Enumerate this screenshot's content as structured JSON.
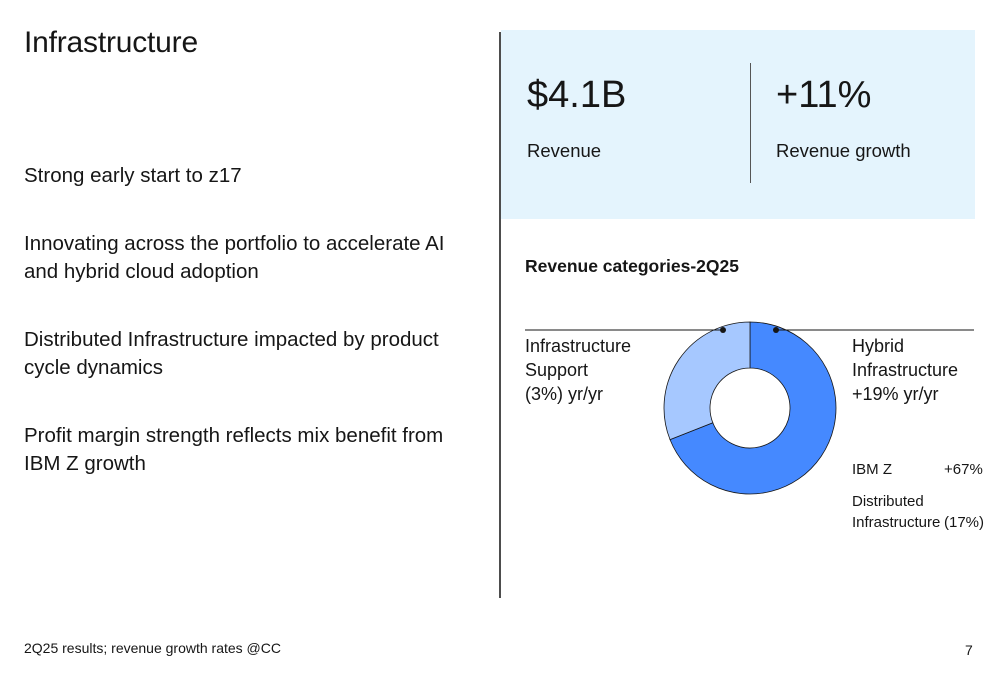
{
  "slide": {
    "title": "Infrastructure",
    "bullets": [
      "Strong early start to z17",
      "Innovating across the portfolio to accelerate AI and hybrid cloud adoption",
      "Distributed Infrastructure impacted by product cycle dynamics",
      "Profit margin strength reflects mix benefit from IBM Z growth"
    ],
    "footnote": "2Q25 results; revenue growth rates @CC",
    "page_number": "7"
  },
  "kpis": [
    {
      "value": "$4.1B",
      "label": "Revenue"
    },
    {
      "value": "+11%",
      "label": "Revenue growth"
    }
  ],
  "chart": {
    "title": "Revenue categories-2Q25",
    "callouts": {
      "left": [
        "Infrastructure",
        "Support",
        "(3%) yr/yr"
      ],
      "right": [
        "Hybrid",
        "Infrastructure",
        "+19% yr/yr"
      ]
    },
    "legend": [
      {
        "name": "IBM Z",
        "value": "+67%"
      },
      {
        "name_lines": [
          "Distributed",
          "Infrastructure"
        ],
        "value": "(17%)"
      }
    ]
  },
  "colors": {
    "hybrid_infrastructure": "#4589ff",
    "infrastructure_support": "#a6c8ff",
    "kpi_background": "#e4f4fd"
  },
  "chart_data": {
    "type": "pie",
    "title": "Revenue categories-2Q25",
    "donut": true,
    "slices": [
      {
        "name": "Hybrid Infrastructure",
        "share": 0.69,
        "yr_yr": "+19%"
      },
      {
        "name": "Infrastructure Support",
        "share": 0.31,
        "yr_yr": "(3%)"
      }
    ]
  }
}
